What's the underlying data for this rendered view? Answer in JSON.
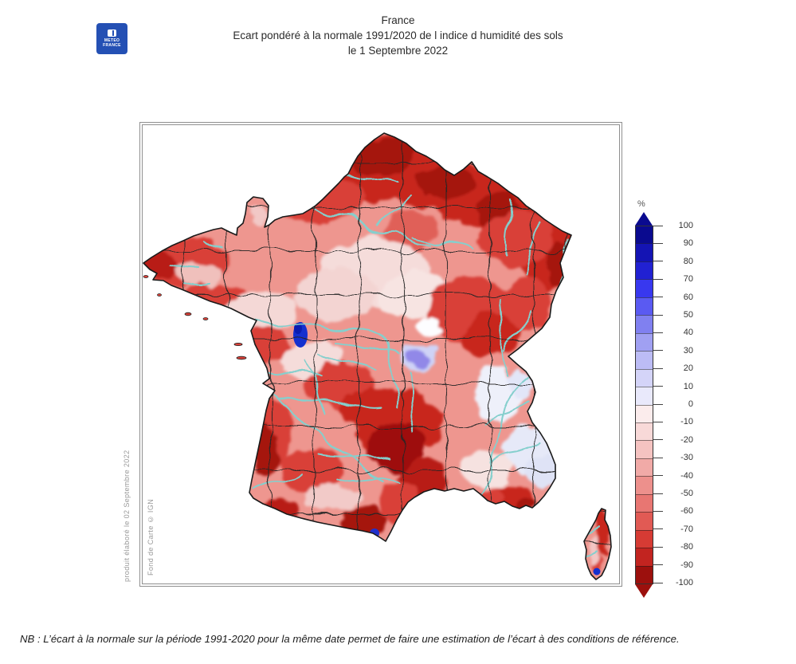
{
  "logo": {
    "line1": "METEO",
    "line2": "FRANCE",
    "color": "#2450b4"
  },
  "title": {
    "line1": "France",
    "line2": "Ecart pondéré à la normale 1991/2020 de l indice d humidité des sols",
    "line3": "le 1 Septembre 2022"
  },
  "map": {
    "caption_produced": "produit élaboré le 02 Septembre 2022",
    "caption_basemap": "Fond de Carte © IGN",
    "colors": {
      "base_red": "#ee968f",
      "strong_red": "#c8281e",
      "dark_red": "#9e0f0c",
      "pale_pink": "#f5dcda",
      "river_cyan": "#85cfcd",
      "boundary_dark": "#262626",
      "blue_anomaly": "#1430cf"
    }
  },
  "legend": {
    "unit": "%",
    "tick_values": [
      100,
      90,
      80,
      70,
      60,
      50,
      40,
      30,
      20,
      10,
      0,
      -10,
      -20,
      -30,
      -40,
      -50,
      -60,
      -70,
      -80,
      -90,
      -100
    ],
    "band_colors": [
      "#0a0a8f",
      "#1414b4",
      "#2121d2",
      "#3838ef",
      "#5a5af2",
      "#8080f0",
      "#a0a0f2",
      "#bcbcf5",
      "#d4d4f8",
      "#e9e9fb",
      "#fbecec",
      "#f8d9d8",
      "#f5c3c1",
      "#f1aaa7",
      "#ed908c",
      "#e87672",
      "#e15a54",
      "#d63b34",
      "#c22420",
      "#9c100d"
    ]
  },
  "footnote": {
    "text": "NB : L’écart à la normale sur la période 1991-2020 pour la même date permet de faire une estimation de l’écart à des conditions de référence."
  }
}
